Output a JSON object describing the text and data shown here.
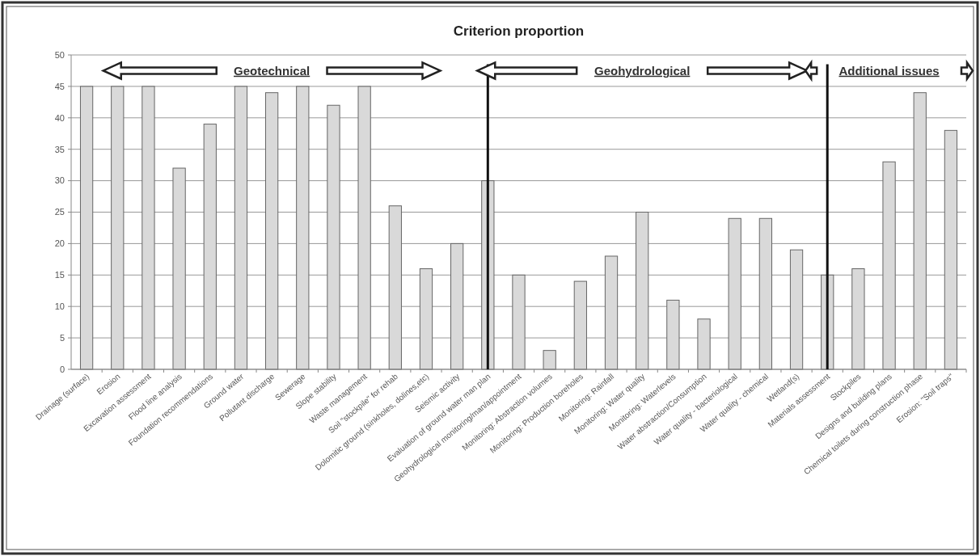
{
  "chart_data": {
    "type": "bar",
    "title": "Criterion proportion",
    "categories": [
      "Drainage (surface)",
      "Erosion",
      "Excavation assessment",
      "Flood line analysis",
      "Foundation recommendations",
      "Ground water",
      "Pollutant discharge",
      "Sewerage",
      "Slope stability",
      "Waste management",
      "Soil \"stockpile\" for rehab",
      "Dolomitic ground (sinkholes, dolines,etc)",
      "Seismic activity",
      "Evaluation of ground water man plan",
      "Geohydrological monitoring/man/appointment",
      "Monitoring: Abstraction volumes",
      "Monitoring: Production boreholes",
      "Monitoring: Rainfall",
      "Monitoring: Water quality",
      "Monitoring: Waterlevels",
      "Water abstraction/Consumption",
      "Water quality - bacteriological",
      "Water quality - chemical",
      "Wetland(s)",
      "Materials assessment",
      "Stockpiles",
      "Designs and building plans",
      "Chemical toilets during construction phase",
      "Erosion: \"Soil traps\""
    ],
    "values": [
      45,
      45,
      45,
      32,
      39,
      45,
      44,
      45,
      42,
      45,
      26,
      16,
      20,
      30,
      15,
      3,
      14,
      18,
      25,
      11,
      8,
      24,
      24,
      19,
      15,
      16,
      33,
      44,
      38
    ],
    "color": "#d9d9d9",
    "ylim": [
      0,
      50
    ],
    "yticks": [
      0,
      5,
      10,
      15,
      20,
      25,
      30,
      35,
      40,
      45,
      50
    ],
    "grid": "y",
    "legend": false,
    "ref_lines": [
      {
        "axis": "x",
        "value": "Evaluation of ground water man plan",
        "color": "#111111"
      },
      {
        "axis": "x",
        "value": "Materials assessment",
        "color": "#111111"
      }
    ],
    "annotations": [
      "Geotechnical",
      "Geohydrological",
      "Additional issues"
    ]
  }
}
